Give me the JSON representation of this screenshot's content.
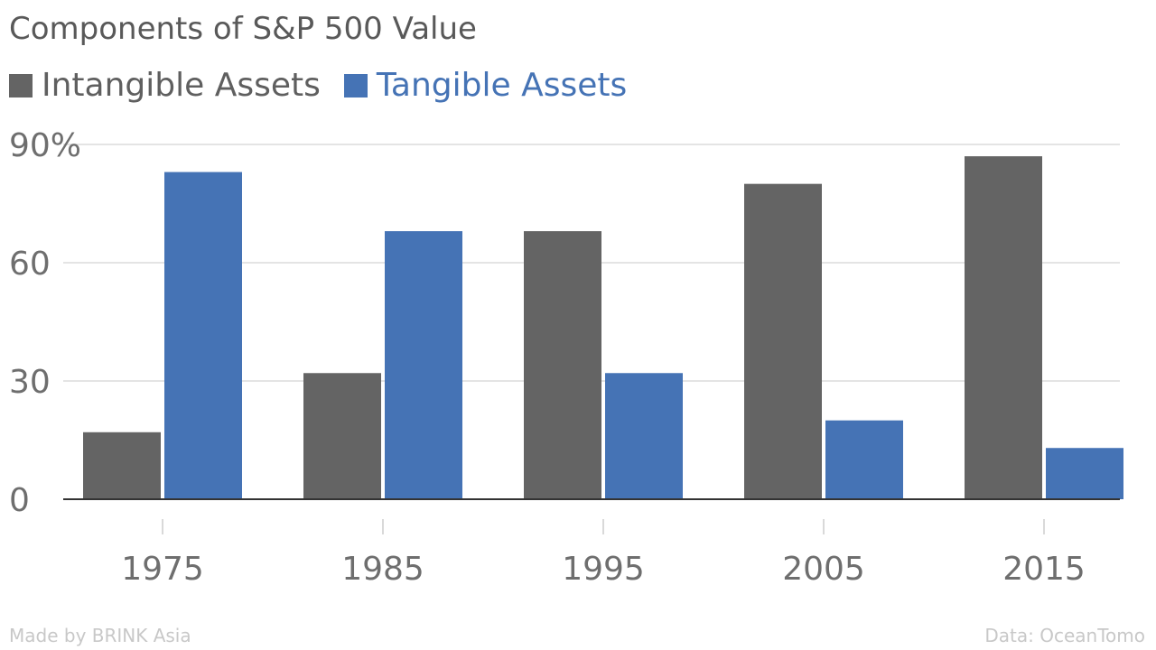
{
  "chart_data": {
    "type": "bar",
    "title": "Components of S&P 500 Value",
    "categories": [
      "1975",
      "1985",
      "1995",
      "2005",
      "2015"
    ],
    "series": [
      {
        "name": "Intangible Assets",
        "values": [
          17,
          32,
          68,
          80,
          87
        ],
        "color": "#646464"
      },
      {
        "name": "Tangible Assets",
        "values": [
          83,
          68,
          32,
          20,
          13
        ],
        "color": "#4573b5"
      }
    ],
    "yticks": [
      "0",
      "30",
      "60",
      "90%"
    ],
    "ylim": [
      0,
      90
    ],
    "grid": true,
    "legend_position": "top-left",
    "xlabel": "",
    "ylabel": ""
  },
  "footer": {
    "credit": "Made by BRINK Asia",
    "source": "Data: OceanTomo"
  }
}
